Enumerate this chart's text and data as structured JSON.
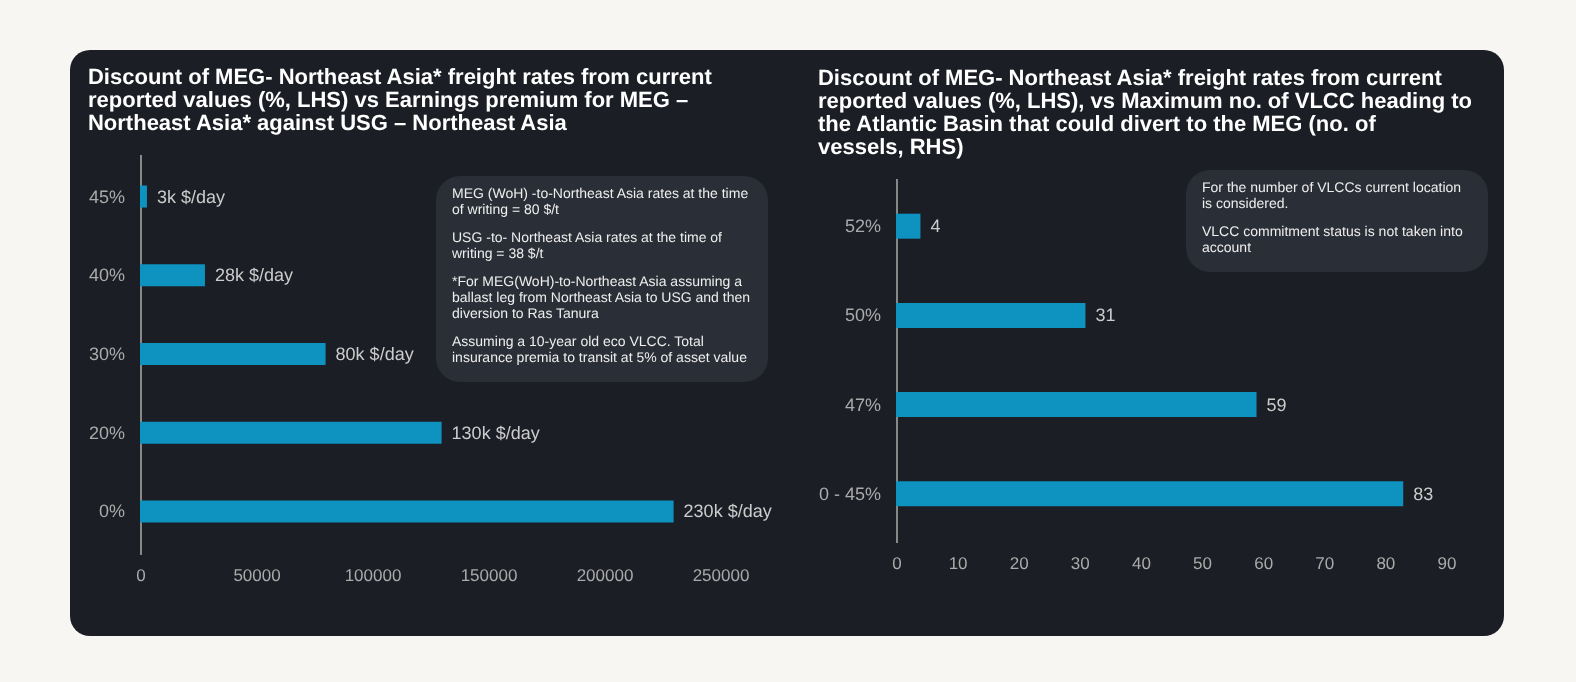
{
  "chart_data": [
    {
      "type": "bar",
      "orientation": "horizontal",
      "title": "Discount of MEG- Northeast Asia* freight rates from current reported values (%, LHS) vs Earnings premium for MEG – Northeast Asia* against USG – Northeast Asia",
      "categories": [
        "45%",
        "40%",
        "30%",
        "20%",
        "0%"
      ],
      "values": [
        3000,
        28000,
        80000,
        130000,
        230000
      ],
      "value_labels": [
        "3k $/day",
        "28k $/day",
        "80k $/day",
        "130k $/day",
        "230k $/day"
      ],
      "color": "#0e92c0",
      "xlim": [
        0,
        250000
      ],
      "xticks": [
        0,
        50000,
        100000,
        150000,
        200000,
        250000
      ],
      "annotations": [
        "MEG (WoH) -to-Northeast Asia rates at the time of writing = 80 $/t",
        "USG  -to- Northeast Asia rates at the time of writing = 38 $/t",
        "*For MEG(WoH)-to-Northeast Asia assuming a ballast leg from Northeast Asia to USG and then diversion to Ras Tanura",
        "Assuming a 10-year old eco VLCC. Total insurance premia to transit at 5% of asset value"
      ]
    },
    {
      "type": "bar",
      "orientation": "horizontal",
      "title": "Discount of MEG- Northeast Asia* freight rates from current reported values (%, LHS), vs Maximum no. of VLCC heading to the Atlantic Basin that could divert to the MEG  (no. of vessels, RHS)",
      "categories": [
        "52%",
        "50%",
        "47%",
        "0 - 45%"
      ],
      "values": [
        4,
        31,
        59,
        83
      ],
      "data_labels": true,
      "color": "#0e92c0",
      "xlim": [
        0,
        90
      ],
      "xticks": [
        0,
        10,
        20,
        30,
        40,
        50,
        60,
        70,
        80,
        90
      ],
      "annotations": [
        "For the number of VLCCs current location is considered.",
        "VLCC commitment status is not taken into account"
      ]
    }
  ]
}
